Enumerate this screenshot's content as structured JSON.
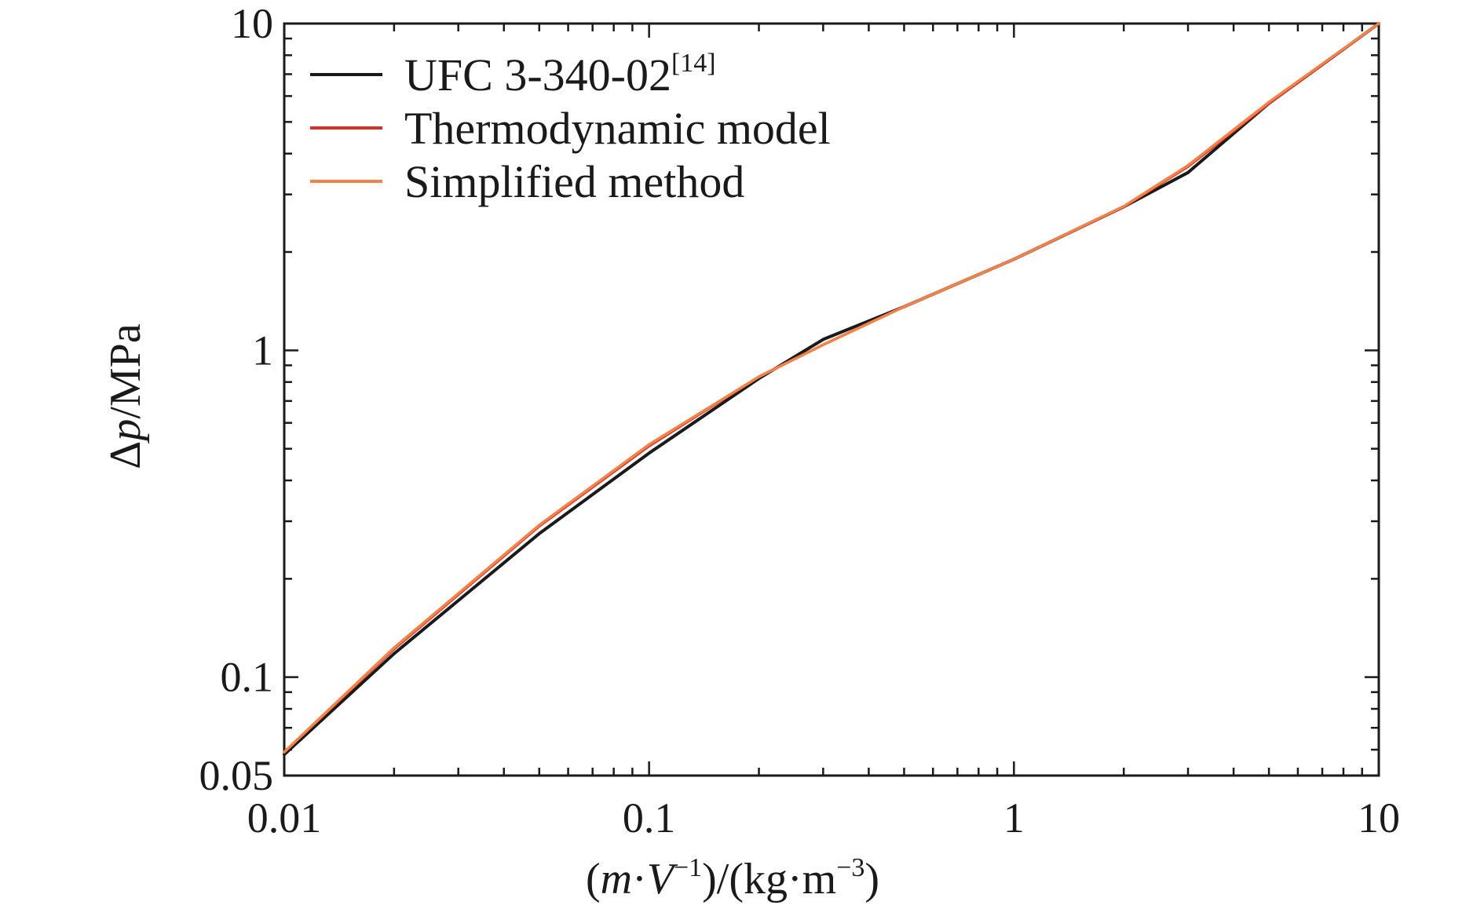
{
  "chart_data": {
    "type": "line",
    "x_scale": "log",
    "y_scale": "log",
    "xlabel": {
      "open": "(",
      "m": "m",
      "dot": "·",
      "V": "V",
      "exp1": "−1",
      "mid": ")/(kg·m",
      "exp2": "−3",
      "close": ")"
    },
    "ylabel": {
      "delta": "Δ",
      "p": "p",
      "unit": "/MPa"
    },
    "xlim": [
      0.01,
      10
    ],
    "ylim": [
      0.05,
      10
    ],
    "x_ticks": [
      {
        "value": 0.01,
        "label": "0.01"
      },
      {
        "value": 0.1,
        "label": "0.1"
      },
      {
        "value": 1,
        "label": "1"
      },
      {
        "value": 10,
        "label": "10"
      }
    ],
    "y_ticks": [
      {
        "value": 0.05,
        "label": "0.05"
      },
      {
        "value": 0.1,
        "label": "0.1"
      },
      {
        "value": 1,
        "label": "1"
      },
      {
        "value": 10,
        "label": "10"
      }
    ],
    "grid": false,
    "legend_position": "top-left",
    "series": [
      {
        "name": "UFC 3-340-02",
        "name_sup": "[14]",
        "color": "#1a1a1a",
        "x": [
          0.01,
          0.02,
          0.05,
          0.1,
          0.2,
          0.3,
          0.5,
          1,
          2,
          3,
          5,
          10
        ],
        "y": [
          0.058,
          0.118,
          0.275,
          0.485,
          0.82,
          1.08,
          1.36,
          1.9,
          2.75,
          3.5,
          5.7,
          10
        ]
      },
      {
        "name": "Thermodynamic model",
        "color": "#d93025",
        "x": [
          0.01,
          0.02,
          0.05,
          0.1,
          0.2,
          0.3,
          0.5,
          1,
          2,
          3,
          5,
          10
        ],
        "y": [
          0.059,
          0.122,
          0.29,
          0.51,
          0.83,
          1.04,
          1.36,
          1.9,
          2.75,
          3.65,
          5.7,
          10
        ]
      },
      {
        "name": "Simplified method",
        "color": "#f0834a",
        "x": [
          0.01,
          0.02,
          0.05,
          0.1,
          0.2,
          0.3,
          0.5,
          1,
          2,
          3,
          5,
          10
        ],
        "y": [
          0.059,
          0.123,
          0.292,
          0.515,
          0.83,
          1.04,
          1.36,
          1.9,
          2.76,
          3.68,
          5.75,
          10
        ]
      }
    ]
  }
}
